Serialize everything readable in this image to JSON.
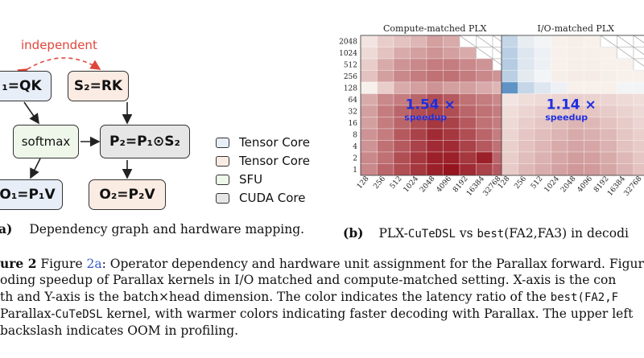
{
  "graph": {
    "independent_label": "independent",
    "nodes": {
      "s1": "₁=QK",
      "s2": "S₂=RK",
      "softmax": "softmax",
      "p2": "P₂=P₁⊙S₂",
      "o1": "O₁=P₁V",
      "o2": "O₂=P₂V"
    },
    "legend": [
      "Tensor Core",
      "Tensor Core",
      "SFU",
      "CUDA Core"
    ],
    "colors": {
      "tensor_blue": "#e8eef8",
      "tensor_orange": "#fbece3",
      "sfu_green": "#eef7ea",
      "cuda_gray": "#e6e6e6",
      "independent_red": "#e0463b"
    }
  },
  "subcaptions": {
    "a_label": "a)",
    "a_text": "Dependency graph and hardware mapping.",
    "b_label": "(b)",
    "b_text_1": "PLX-",
    "b_text_mono": "CuTeDSL",
    "b_text_2": " vs ",
    "b_text_mono2": "best",
    "b_text_3": "(FA2,FA3) in decodi"
  },
  "caption": {
    "lines": [
      [
        "ure 2",
        "  Figure ",
        "2a",
        ": Operator dependency and hardware unit assignment for the Parallax forward. Figure"
      ],
      [
        "oding speedup of Parallax kernels in I/O matched and compute-matched setting. X-axis is the con"
      ],
      [
        "th and Y-axis is the batch×head dimension. The color indicates the latency ratio of the ",
        "best(FA2,F"
      ],
      [
        " Parallax-",
        "CuTeDSL",
        " kernel, with warmer colors indicating faster decoding with Parallax. The upper left"
      ],
      [
        "backslash indicates OOM in profiling."
      ]
    ]
  },
  "chart_data": [
    {
      "type": "heatmap",
      "title": "Compute-matched PLX",
      "x_ticks": [
        "128",
        "256",
        "512",
        "1024",
        "2048",
        "4096",
        "8192",
        "16384",
        "32768"
      ],
      "y_ticks": [
        "2048",
        "1024",
        "512",
        "256",
        "128",
        "64",
        "32",
        "16",
        "8",
        "4",
        "2",
        "1"
      ],
      "annotation_value": "1.54 ×",
      "annotation_label": "speedup",
      "oom_cells": "upper-right triangle",
      "values": [
        [
          1.05,
          1.15,
          1.2,
          1.25,
          1.35,
          1.3,
          null,
          null,
          null
        ],
        [
          1.1,
          1.2,
          1.3,
          1.35,
          1.4,
          1.35,
          1.3,
          null,
          null
        ],
        [
          1.15,
          1.3,
          1.4,
          1.45,
          1.5,
          1.5,
          1.45,
          1.4,
          null
        ],
        [
          1.2,
          1.35,
          1.45,
          1.5,
          1.55,
          1.55,
          1.5,
          1.45,
          1.4
        ],
        [
          1.0,
          1.15,
          1.3,
          1.35,
          1.4,
          1.35,
          1.35,
          1.3,
          1.25
        ],
        [
          1.3,
          1.45,
          1.5,
          1.6,
          1.7,
          1.65,
          1.55,
          1.5,
          1.45
        ],
        [
          1.35,
          1.5,
          1.6,
          1.7,
          1.75,
          1.7,
          1.6,
          1.55,
          1.5
        ],
        [
          1.35,
          1.5,
          1.6,
          1.7,
          1.8,
          1.75,
          1.65,
          1.55,
          1.5
        ],
        [
          1.4,
          1.5,
          1.65,
          1.75,
          1.85,
          1.8,
          1.7,
          1.6,
          1.5
        ],
        [
          1.4,
          1.55,
          1.65,
          1.75,
          1.85,
          1.85,
          1.75,
          1.65,
          1.55
        ],
        [
          1.45,
          1.55,
          1.7,
          1.8,
          1.9,
          1.9,
          1.8,
          1.9,
          1.6
        ],
        [
          1.45,
          1.6,
          1.7,
          1.8,
          1.9,
          1.95,
          1.85,
          1.75,
          1.65
        ]
      ]
    },
    {
      "type": "heatmap",
      "title": "I/O-matched PLX",
      "x_ticks": [
        "128",
        "256",
        "512",
        "1024",
        "2048",
        "4096",
        "8192",
        "16384",
        "32768"
      ],
      "annotation_value": "1.14 ×",
      "annotation_label": "speedup",
      "oom_cells": "upper-right triangle",
      "values": [
        [
          0.9,
          0.97,
          0.99,
          1.0,
          1.01,
          1.0,
          null,
          null,
          null
        ],
        [
          0.88,
          0.95,
          0.98,
          1.0,
          1.01,
          1.01,
          1.0,
          null,
          null
        ],
        [
          0.87,
          0.95,
          0.98,
          1.0,
          1.01,
          1.01,
          1.0,
          1.0,
          null
        ],
        [
          0.88,
          0.96,
          0.99,
          1.01,
          1.02,
          1.02,
          1.01,
          1.0,
          1.0
        ],
        [
          0.7,
          0.9,
          0.95,
          0.98,
          1.0,
          1.0,
          1.0,
          0.99,
          0.99
        ],
        [
          1.05,
          1.08,
          1.1,
          1.12,
          1.14,
          1.13,
          1.12,
          1.1,
          1.08
        ],
        [
          1.08,
          1.12,
          1.15,
          1.17,
          1.2,
          1.18,
          1.16,
          1.13,
          1.1
        ],
        [
          1.1,
          1.15,
          1.18,
          1.22,
          1.26,
          1.24,
          1.2,
          1.16,
          1.12
        ],
        [
          1.12,
          1.18,
          1.22,
          1.26,
          1.3,
          1.28,
          1.24,
          1.18,
          1.14
        ],
        [
          1.14,
          1.2,
          1.25,
          1.3,
          1.33,
          1.32,
          1.27,
          1.2,
          1.16
        ],
        [
          1.15,
          1.22,
          1.27,
          1.32,
          1.36,
          1.35,
          1.3,
          1.24,
          1.18
        ],
        [
          1.16,
          1.24,
          1.29,
          1.34,
          1.38,
          1.37,
          1.32,
          1.26,
          1.2
        ]
      ]
    }
  ]
}
